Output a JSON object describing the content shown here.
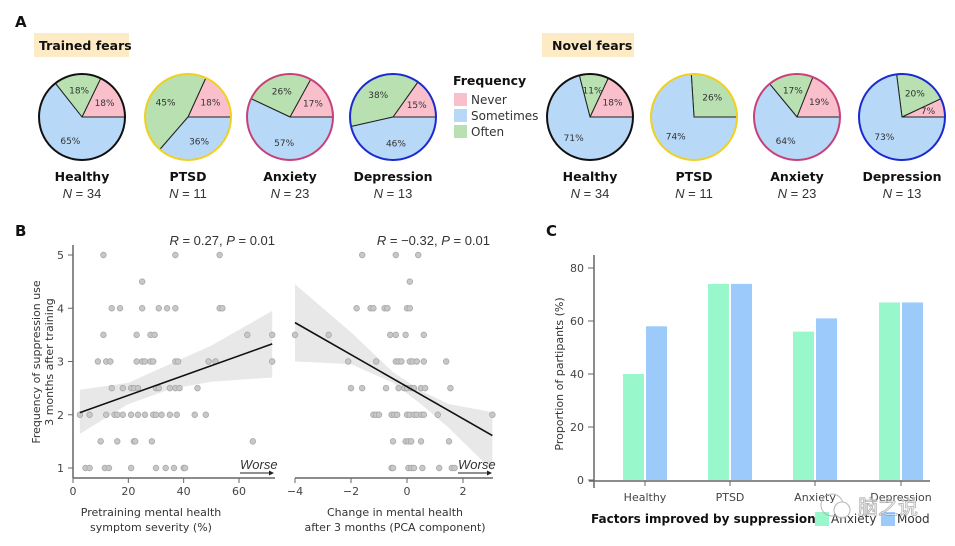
{
  "panel_letters": {
    "a": "A",
    "b": "B",
    "c": "C"
  },
  "legend": {
    "title": "Frequency",
    "items": [
      {
        "label": "Never",
        "color": "#f9c0cb"
      },
      {
        "label": "Sometimes",
        "color": "#b8d8f8"
      },
      {
        "label": "Often",
        "color": "#b8e0b0"
      }
    ]
  },
  "watermark": "脑之说",
  "chart_data": [
    {
      "type": "pie",
      "id": "trained-fears",
      "title": "Trained fears",
      "slice_order": [
        "Never",
        "Often",
        "Sometimes"
      ],
      "groups": [
        {
          "name": "Healthy",
          "n_label": "N = 34",
          "border": "#111111",
          "values": {
            "Never": 18,
            "Often": 18,
            "Sometimes": 65
          }
        },
        {
          "name": "PTSD",
          "n_label": "N = 11",
          "border": "#f0d020",
          "values": {
            "Never": 18,
            "Often": 45,
            "Sometimes": 36
          }
        },
        {
          "name": "Anxiety",
          "n_label": "N = 23",
          "border": "#c8407a",
          "values": {
            "Never": 17,
            "Often": 26,
            "Sometimes": 57
          }
        },
        {
          "name": "Depression",
          "n_label": "N = 13",
          "border": "#1a2ad0",
          "values": {
            "Never": 15,
            "Often": 38,
            "Sometimes": 46
          }
        }
      ]
    },
    {
      "type": "pie",
      "id": "novel-fears",
      "title": "Novel fears",
      "slice_order": [
        "Never",
        "Often",
        "Sometimes"
      ],
      "groups": [
        {
          "name": "Healthy",
          "n_label": "N = 34",
          "border": "#111111",
          "values": {
            "Never": 18,
            "Often": 11,
            "Sometimes": 71
          }
        },
        {
          "name": "PTSD",
          "n_label": "N = 11",
          "border": "#f0d020",
          "values": {
            "Never": 0,
            "Often": 26,
            "Sometimes": 74
          }
        },
        {
          "name": "Anxiety",
          "n_label": "N = 23",
          "border": "#c8407a",
          "values": {
            "Never": 19,
            "Often": 17,
            "Sometimes": 64
          }
        },
        {
          "name": "Depression",
          "n_label": "N = 13",
          "border": "#1a2ad0",
          "values": {
            "Never": 7,
            "Often": 20,
            "Sometimes": 73
          }
        }
      ]
    },
    {
      "type": "scatter",
      "id": "pretraining-scatter",
      "ylabel": "Frequency of suppression use 3 months after training",
      "ylabel_lines": [
        "Frequency of suppression use",
        "3 months after training"
      ],
      "xlabel_lines": [
        "Pretraining mental health",
        "symptom severity (%)"
      ],
      "annotation": "R = 0.27, P = 0.01",
      "annotation_parts": {
        "r_letter": "R",
        "r_value": " = 0.27, ",
        "p_letter": "P",
        "p_value": " = 0.01"
      },
      "direction_label": "Worse",
      "xlim": [
        0,
        72
      ],
      "ylim": [
        0.85,
        5.2
      ],
      "xticks": [
        0,
        20,
        40,
        60
      ],
      "xtick_labels": [
        "0",
        "20",
        "40",
        "60"
      ],
      "yticks": [
        1,
        2,
        3,
        4,
        5
      ],
      "ytick_labels": [
        "1",
        "2",
        "3",
        "4",
        "5"
      ],
      "fit": {
        "x": [
          2.5,
          72
        ],
        "y": [
          2.04,
          3.33
        ]
      },
      "band_upper": [
        [
          2.5,
          2.47
        ],
        [
          20,
          2.6
        ],
        [
          35,
          2.95
        ],
        [
          50,
          3.3
        ],
        [
          72,
          3.95
        ]
      ],
      "band_lower": [
        [
          2.5,
          1.64
        ],
        [
          20,
          2.2
        ],
        [
          35,
          2.48
        ],
        [
          50,
          2.62
        ],
        [
          72,
          2.7
        ]
      ],
      "points": [
        [
          11,
          5
        ],
        [
          37,
          5
        ],
        [
          53,
          5
        ],
        [
          25,
          4.5
        ],
        [
          14,
          4
        ],
        [
          17,
          4
        ],
        [
          25,
          4
        ],
        [
          31,
          4
        ],
        [
          34,
          4
        ],
        [
          37,
          4
        ],
        [
          53,
          4
        ],
        [
          54,
          4
        ],
        [
          11,
          3.5
        ],
        [
          23,
          3.5
        ],
        [
          28,
          3.5
        ],
        [
          29.5,
          3.5
        ],
        [
          63,
          3.5
        ],
        [
          72,
          3.5
        ],
        [
          9,
          3
        ],
        [
          12,
          3
        ],
        [
          13.5,
          3
        ],
        [
          23,
          3
        ],
        [
          25,
          3
        ],
        [
          26,
          3
        ],
        [
          28,
          3
        ],
        [
          29,
          3
        ],
        [
          37,
          3
        ],
        [
          38,
          3
        ],
        [
          49,
          3
        ],
        [
          51.5,
          3
        ],
        [
          72,
          3
        ],
        [
          14,
          2.5
        ],
        [
          18,
          2.5
        ],
        [
          21,
          2.5
        ],
        [
          22,
          2.5
        ],
        [
          23.5,
          2.5
        ],
        [
          30,
          2.5
        ],
        [
          31,
          2.5
        ],
        [
          35,
          2.5
        ],
        [
          37,
          2.5
        ],
        [
          38.5,
          2.5
        ],
        [
          45,
          2.5
        ],
        [
          2.5,
          2
        ],
        [
          6,
          2
        ],
        [
          12,
          2
        ],
        [
          15,
          2
        ],
        [
          16,
          2
        ],
        [
          18,
          2
        ],
        [
          21,
          2
        ],
        [
          23.5,
          2
        ],
        [
          26,
          2
        ],
        [
          29,
          2
        ],
        [
          30,
          2
        ],
        [
          32,
          2
        ],
        [
          35,
          2
        ],
        [
          37.5,
          2
        ],
        [
          44,
          2
        ],
        [
          48,
          2
        ],
        [
          10,
          1.5
        ],
        [
          16,
          1.5
        ],
        [
          22,
          1.5
        ],
        [
          22.5,
          1.5
        ],
        [
          28.5,
          1.5
        ],
        [
          65,
          1.5
        ],
        [
          4.5,
          1
        ],
        [
          6,
          1
        ],
        [
          11.5,
          1
        ],
        [
          13,
          1
        ],
        [
          21,
          1
        ],
        [
          30,
          1
        ],
        [
          33.5,
          1
        ],
        [
          36.5,
          1
        ],
        [
          40,
          1
        ],
        [
          40.5,
          1
        ]
      ]
    },
    {
      "type": "scatter",
      "id": "change-scatter",
      "xlabel_lines": [
        "Change in mental health",
        "after 3 months (PCA component)"
      ],
      "annotation": "R = −0.32, P = 0.01",
      "annotation_parts": {
        "r_letter": "R",
        "r_value": " = −0.32, ",
        "p_letter": "P",
        "p_value": " = 0.01"
      },
      "direction_label": "Worse",
      "xlim": [
        -4,
        3.05
      ],
      "ylim": [
        0.85,
        5.2
      ],
      "xticks": [
        -4,
        -2,
        0,
        2
      ],
      "xtick_labels": [
        "−4",
        "−2",
        "0",
        "2"
      ],
      "yticks": [
        1,
        2,
        3,
        4,
        5
      ],
      "fit": {
        "x": [
          -4,
          3.05
        ],
        "y": [
          3.73,
          1.61
        ]
      },
      "band_upper": [
        [
          -4,
          4.45
        ],
        [
          -2,
          3.55
        ],
        [
          -0.5,
          2.8
        ],
        [
          0.5,
          2.45
        ],
        [
          1.5,
          2.2
        ],
        [
          3.05,
          2.05
        ]
      ],
      "band_lower": [
        [
          -4,
          3.0
        ],
        [
          -2,
          2.95
        ],
        [
          -0.5,
          2.6
        ],
        [
          0.5,
          2.2
        ],
        [
          1.5,
          1.75
        ],
        [
          3.05,
          0.95
        ]
      ],
      "points": [
        [
          -1.6,
          5
        ],
        [
          -0.4,
          5
        ],
        [
          0.4,
          5
        ],
        [
          0.1,
          4.5
        ],
        [
          -1.8,
          4
        ],
        [
          -1.3,
          4
        ],
        [
          -1.2,
          4
        ],
        [
          -0.8,
          4
        ],
        [
          -0.7,
          4
        ],
        [
          0,
          4
        ],
        [
          0.1,
          4
        ],
        [
          -4,
          3.5
        ],
        [
          -2.8,
          3.5
        ],
        [
          -0.6,
          3.5
        ],
        [
          -0.4,
          3.5
        ],
        [
          -0.05,
          3.5
        ],
        [
          0.6,
          3.5
        ],
        [
          -2.1,
          3
        ],
        [
          -1.1,
          3
        ],
        [
          -0.4,
          3
        ],
        [
          -0.3,
          3
        ],
        [
          -0.2,
          3
        ],
        [
          0.1,
          3
        ],
        [
          0.2,
          3
        ],
        [
          0.35,
          3
        ],
        [
          0.6,
          3
        ],
        [
          1.4,
          3
        ],
        [
          -2.0,
          2.5
        ],
        [
          -1.6,
          2.5
        ],
        [
          -0.75,
          2.5
        ],
        [
          -0.3,
          2.5
        ],
        [
          -0.1,
          2.5
        ],
        [
          0,
          2.5
        ],
        [
          0.15,
          2.5
        ],
        [
          0.25,
          2.5
        ],
        [
          0.5,
          2.5
        ],
        [
          0.65,
          2.5
        ],
        [
          1.55,
          2.5
        ],
        [
          -1.2,
          2
        ],
        [
          -1.1,
          2
        ],
        [
          -1.0,
          2
        ],
        [
          -0.55,
          2
        ],
        [
          -0.45,
          2
        ],
        [
          -0.35,
          2
        ],
        [
          0,
          2
        ],
        [
          0.1,
          2
        ],
        [
          0.25,
          2
        ],
        [
          0.35,
          2
        ],
        [
          0.5,
          2
        ],
        [
          0.6,
          2
        ],
        [
          1.1,
          2
        ],
        [
          3.05,
          2
        ],
        [
          -0.5,
          1.5
        ],
        [
          -0.05,
          1.5
        ],
        [
          0.05,
          1.5
        ],
        [
          0.15,
          1.5
        ],
        [
          0.5,
          1.5
        ],
        [
          1.5,
          1.5
        ],
        [
          -0.55,
          1
        ],
        [
          -0.5,
          1
        ],
        [
          0.05,
          1
        ],
        [
          0.15,
          1
        ],
        [
          0.25,
          1
        ],
        [
          0.55,
          1
        ],
        [
          1.15,
          1
        ],
        [
          1.6,
          1
        ],
        [
          1.7,
          1
        ]
      ]
    },
    {
      "type": "bar",
      "id": "factors-improved",
      "xlabel": "Factors improved by suppression",
      "ylabel": "Proportion of partipants (%)",
      "categories": [
        "Healthy",
        "PTSD",
        "Anxiety",
        "Depression"
      ],
      "ylim": [
        0,
        85
      ],
      "yticks": [
        0,
        20,
        40,
        60,
        80
      ],
      "ytick_labels": [
        "0",
        "20",
        "40",
        "60",
        "80"
      ],
      "legend_position": "bottom-right",
      "series": [
        {
          "name": "Anxiety",
          "color": "#99f7cc",
          "values": [
            40,
            74,
            56,
            67
          ]
        },
        {
          "name": "Mood",
          "color": "#9ccbfb",
          "values": [
            58,
            74,
            61,
            67
          ]
        }
      ]
    }
  ]
}
